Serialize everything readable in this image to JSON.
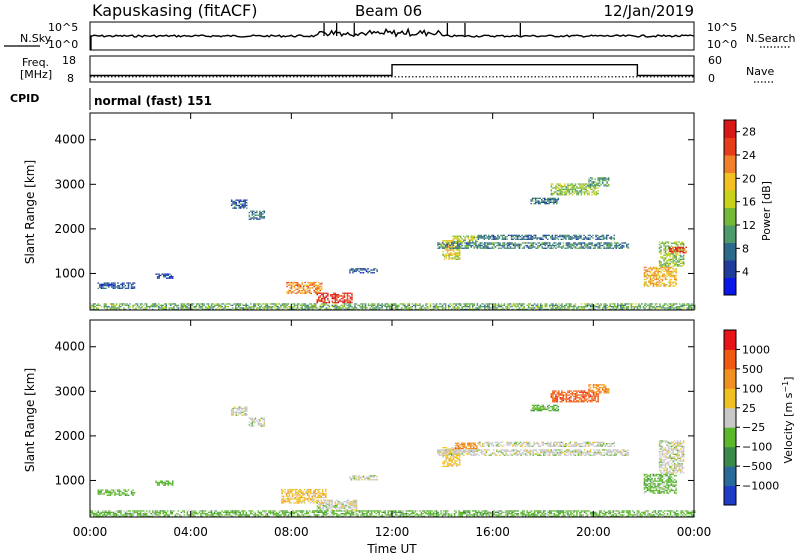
{
  "header": {
    "station": "Kapuskasing (fitACF)",
    "beam": "Beam 06",
    "date": "12/Jan/2019"
  },
  "noise_panel": {
    "left_label": "N.Sky",
    "right_label": "N.Search",
    "left_ticks": [
      "10^5",
      "10^0"
    ],
    "right_ticks": [
      "10^5",
      "10^0"
    ]
  },
  "freq_panel": {
    "left_label_line1": "Freq.",
    "left_label_line2": "[MHz]",
    "right_label": "Nave",
    "left_ticks": [
      "18",
      "8"
    ],
    "right_ticks": [
      "60",
      "0"
    ],
    "freq_mhz": 10,
    "nave_steps": [
      {
        "start": "00:00",
        "end": "12:00",
        "nave": 15
      },
      {
        "start": "12:00",
        "end": "21:45",
        "nave": 40
      },
      {
        "start": "21:45",
        "end": "24:00",
        "nave": 15
      }
    ]
  },
  "cpid": {
    "label": "CPID",
    "text": "normal (fast) 151"
  },
  "chart_data": [
    {
      "type": "heatmap",
      "name": "power",
      "ylabel": "Slant Range [km]",
      "xlabel": "",
      "ylim": [
        180,
        4600
      ],
      "y_ticks": [
        "1000",
        "2000",
        "3000",
        "4000"
      ],
      "colorbar": {
        "label": "Power [dB]",
        "ticks": [
          "4",
          "8",
          "12",
          "16",
          "20",
          "24",
          "28"
        ],
        "range": [
          0,
          30
        ],
        "colors": [
          "#0b16e8",
          "#1f3c9a",
          "#2d6a8a",
          "#4e9a6a",
          "#76b83a",
          "#c8d21a",
          "#f2c020",
          "#f0802a",
          "#e63c1a",
          "#d81818"
        ]
      },
      "regions": [
        {
          "t0": 0.3,
          "t1": 1.8,
          "r0": 650,
          "r1": 780,
          "level": 6
        },
        {
          "t0": 2.6,
          "t1": 3.3,
          "r0": 880,
          "r1": 990,
          "level": 5
        },
        {
          "t0": 5.6,
          "t1": 6.2,
          "r0": 2450,
          "r1": 2650,
          "level": 6
        },
        {
          "t0": 6.3,
          "t1": 6.9,
          "r0": 2200,
          "r1": 2400,
          "level": 7
        },
        {
          "t0": 10.3,
          "t1": 11.4,
          "r0": 1000,
          "r1": 1120,
          "level": 6
        },
        {
          "t0": 7.8,
          "t1": 9.2,
          "r0": 540,
          "r1": 800,
          "level": 22
        },
        {
          "t0": 9.0,
          "t1": 10.4,
          "r0": 330,
          "r1": 560,
          "level": 27
        },
        {
          "t0": 14.0,
          "t1": 14.7,
          "r0": 1300,
          "r1": 1750,
          "level": 18
        },
        {
          "t0": 14.4,
          "t1": 15.4,
          "r0": 1700,
          "r1": 1850,
          "level": 15
        },
        {
          "t0": 13.8,
          "t1": 21.4,
          "r0": 1550,
          "r1": 1700,
          "level": 9
        },
        {
          "t0": 15.4,
          "t1": 20.8,
          "r0": 1750,
          "r1": 1860,
          "level": 8
        },
        {
          "t0": 17.5,
          "t1": 18.6,
          "r0": 2550,
          "r1": 2700,
          "level": 8
        },
        {
          "t0": 18.3,
          "t1": 20.2,
          "r0": 2750,
          "r1": 3000,
          "level": 14
        },
        {
          "t0": 19.8,
          "t1": 20.6,
          "r0": 2950,
          "r1": 3150,
          "level": 11
        },
        {
          "t0": 22.0,
          "t1": 23.3,
          "r0": 700,
          "r1": 1150,
          "level": 20
        },
        {
          "t0": 22.6,
          "t1": 23.6,
          "r0": 1150,
          "r1": 1700,
          "level": 14
        },
        {
          "t0": 23.0,
          "t1": 23.7,
          "r0": 1450,
          "r1": 1600,
          "level": 26
        },
        {
          "t0": 0.0,
          "t1": 24.0,
          "r0": 180,
          "r1": 330,
          "level": 12
        }
      ]
    },
    {
      "type": "heatmap",
      "name": "velocity",
      "ylabel": "Slant Range [km]",
      "xlabel": "Time UT",
      "ylim": [
        180,
        4600
      ],
      "y_ticks": [
        "1000",
        "2000",
        "3000",
        "4000"
      ],
      "x_ticks": [
        "00:00",
        "04:00",
        "08:00",
        "12:00",
        "16:00",
        "20:00",
        "00:00"
      ],
      "colorbar": {
        "label": "Velocity [m s^-1]",
        "ticks": [
          "1000",
          "500",
          "100",
          "25",
          "−25",
          "−100",
          "−500",
          "−1000"
        ],
        "colors": [
          "#1e3cc8",
          "#2a6a9a",
          "#3b8a4a",
          "#5ab82a",
          "#c8c8c8",
          "#f0c020",
          "#f09020",
          "#f05a10",
          "#e8141a"
        ]
      },
      "regions": [
        {
          "t0": 0.3,
          "t1": 1.8,
          "r0": 650,
          "r1": 780,
          "color": 3
        },
        {
          "t0": 2.6,
          "t1": 3.3,
          "r0": 880,
          "r1": 990,
          "color": 3
        },
        {
          "t0": 5.6,
          "t1": 6.2,
          "r0": 2450,
          "r1": 2650,
          "color": 4
        },
        {
          "t0": 6.3,
          "t1": 6.9,
          "r0": 2200,
          "r1": 2400,
          "color": 4
        },
        {
          "t0": 10.3,
          "t1": 11.4,
          "r0": 1000,
          "r1": 1120,
          "color": 4
        },
        {
          "t0": 7.6,
          "t1": 9.4,
          "r0": 480,
          "r1": 800,
          "color": 5
        },
        {
          "t0": 9.0,
          "t1": 10.6,
          "r0": 300,
          "r1": 560,
          "color": 4
        },
        {
          "t0": 14.0,
          "t1": 14.7,
          "r0": 1300,
          "r1": 1750,
          "color": 5
        },
        {
          "t0": 14.5,
          "t1": 15.4,
          "r0": 1700,
          "r1": 1850,
          "color": 6
        },
        {
          "t0": 13.8,
          "t1": 21.4,
          "r0": 1550,
          "r1": 1700,
          "color": 4
        },
        {
          "t0": 15.4,
          "t1": 20.8,
          "r0": 1750,
          "r1": 1860,
          "color": 4
        },
        {
          "t0": 17.5,
          "t1": 18.6,
          "r0": 2550,
          "r1": 2700,
          "color": 3
        },
        {
          "t0": 18.3,
          "t1": 20.2,
          "r0": 2750,
          "r1": 3000,
          "color": 7
        },
        {
          "t0": 19.8,
          "t1": 20.6,
          "r0": 2950,
          "r1": 3150,
          "color": 6
        },
        {
          "t0": 22.0,
          "t1": 23.3,
          "r0": 700,
          "r1": 1150,
          "color": 3
        },
        {
          "t0": 22.6,
          "t1": 23.6,
          "r0": 1150,
          "r1": 1900,
          "color": 4
        },
        {
          "t0": 0.0,
          "t1": 24.0,
          "r0": 180,
          "r1": 330,
          "color": 3
        }
      ]
    }
  ]
}
